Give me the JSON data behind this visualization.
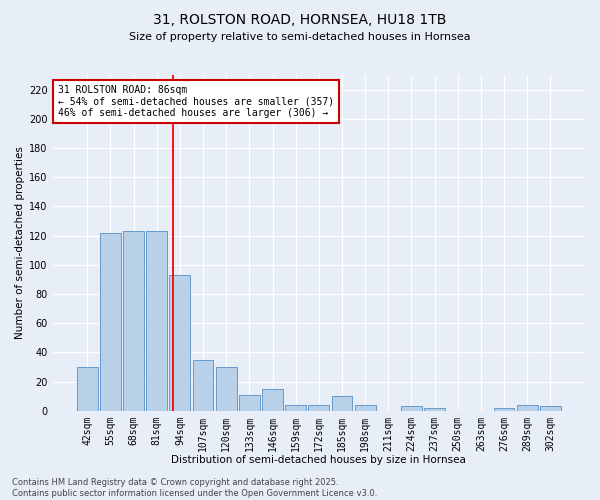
{
  "title": "31, ROLSTON ROAD, HORNSEA, HU18 1TB",
  "subtitle": "Size of property relative to semi-detached houses in Hornsea",
  "xlabel": "Distribution of semi-detached houses by size in Hornsea",
  "ylabel": "Number of semi-detached properties",
  "categories": [
    "42sqm",
    "55sqm",
    "68sqm",
    "81sqm",
    "94sqm",
    "107sqm",
    "120sqm",
    "133sqm",
    "146sqm",
    "159sqm",
    "172sqm",
    "185sqm",
    "198sqm",
    "211sqm",
    "224sqm",
    "237sqm",
    "250sqm",
    "263sqm",
    "276sqm",
    "289sqm",
    "302sqm"
  ],
  "values": [
    30,
    122,
    123,
    123,
    93,
    35,
    30,
    11,
    15,
    4,
    4,
    10,
    4,
    0,
    3,
    2,
    0,
    0,
    2,
    4,
    3
  ],
  "bar_color": "#b8d0e8",
  "bar_edge_color": "#6699cc",
  "background_color": "#e8eef7",
  "grid_color": "#ffffff",
  "red_line_x": 3.69,
  "annotation_text": "31 ROLSTON ROAD: 86sqm\n← 54% of semi-detached houses are smaller (357)\n46% of semi-detached houses are larger (306) →",
  "annotation_box_color": "#ffffff",
  "annotation_box_edge_color": "#cc0000",
  "footer_text": "Contains HM Land Registry data © Crown copyright and database right 2025.\nContains public sector information licensed under the Open Government Licence v3.0.",
  "ylim": [
    0,
    230
  ],
  "yticks": [
    0,
    20,
    40,
    60,
    80,
    100,
    120,
    140,
    160,
    180,
    200,
    220
  ],
  "title_fontsize": 10,
  "subtitle_fontsize": 8,
  "ylabel_fontsize": 7.5,
  "xlabel_fontsize": 7.5,
  "tick_fontsize": 7,
  "footer_fontsize": 6,
  "annotation_fontsize": 7
}
